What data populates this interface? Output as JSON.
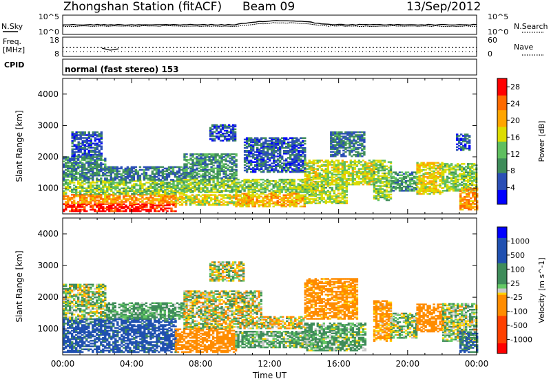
{
  "header": {
    "station": "Zhongshan Station (fitACF)",
    "beam": "Beam 09",
    "date": "13/Sep/2012"
  },
  "top_panels": {
    "nsky_label": "N.Sky",
    "nsearch_label": "N.Search",
    "freq_label_1": "Freq.",
    "freq_label_2": "[MHz]",
    "nave_label": "Nave",
    "cpid_label": "CPID",
    "noise_ticks_left": [
      "10^5",
      "10^0"
    ],
    "noise_ticks_right": [
      "10^5",
      "10^0"
    ],
    "freq_ticks": [
      "18",
      "8"
    ],
    "nave_ticks": [
      "60",
      "0"
    ],
    "cpid_text": "normal (fast stereo) 153"
  },
  "colors": {
    "power_scale": [
      "#0000ff",
      "#2b4fb5",
      "#3f8c5a",
      "#5fbf5f",
      "#dcdc00",
      "#ffa500",
      "#ff6a00",
      "#ff0000"
    ],
    "velocity_scale": [
      "#0000ff",
      "#2050b0",
      "#3f8c5a",
      "#64c864",
      "#c8c8c8",
      "#ffd200",
      "#ff8c00",
      "#ff4000",
      "#ff0000"
    ]
  },
  "chart_data": [
    {
      "type": "heatmap",
      "name": "power",
      "ylabel": "Slant Range [km]",
      "ylim": [
        180,
        4500
      ],
      "yticks": [
        "1000",
        "2000",
        "3000",
        "4000"
      ],
      "xlim": [
        "00:00",
        "24:00"
      ],
      "colorbar_label": "Power [dB]",
      "colorbar_ticks": [
        "4",
        "8",
        "12",
        "16",
        "20",
        "24",
        "28"
      ],
      "colorbar_range": [
        0,
        30
      ],
      "regions": [
        {
          "t": [
            0.0,
            6.5
          ],
          "r": [
            250,
            500
          ],
          "v": 28
        },
        {
          "t": [
            0.0,
            6.5
          ],
          "r": [
            500,
            800
          ],
          "v": 22
        },
        {
          "t": [
            0.0,
            7.0
          ],
          "r": [
            800,
            1250
          ],
          "v": 14
        },
        {
          "t": [
            0.0,
            2.5
          ],
          "r": [
            1250,
            2000
          ],
          "v": 9
        },
        {
          "t": [
            0.5,
            2.2
          ],
          "r": [
            2000,
            2800
          ],
          "v": 6
        },
        {
          "t": [
            2.5,
            7.5
          ],
          "r": [
            1250,
            1700
          ],
          "v": 8
        },
        {
          "t": [
            6.5,
            11.0
          ],
          "r": [
            450,
            800
          ],
          "v": 17
        },
        {
          "t": [
            7.0,
            14.5
          ],
          "r": [
            850,
            1300
          ],
          "v": 14
        },
        {
          "t": [
            7.0,
            10.0
          ],
          "r": [
            1300,
            2100
          ],
          "v": 10
        },
        {
          "t": [
            8.5,
            10.0
          ],
          "r": [
            2500,
            3000
          ],
          "v": 6
        },
        {
          "t": [
            10.5,
            14.0
          ],
          "r": [
            1500,
            2600
          ],
          "v": 6
        },
        {
          "t": [
            10.0,
            14.0
          ],
          "r": [
            400,
            850
          ],
          "v": 20
        },
        {
          "t": [
            14.0,
            16.5
          ],
          "r": [
            500,
            1100
          ],
          "v": 15
        },
        {
          "t": [
            14.0,
            18.0
          ],
          "r": [
            1100,
            1900
          ],
          "v": 16
        },
        {
          "t": [
            15.5,
            17.5
          ],
          "r": [
            2000,
            2800
          ],
          "v": 8
        },
        {
          "t": [
            18.0,
            19.0
          ],
          "r": [
            600,
            1900
          ],
          "v": 14
        },
        {
          "t": [
            19.0,
            20.5
          ],
          "r": [
            900,
            1500
          ],
          "v": 10
        },
        {
          "t": [
            20.5,
            22.0
          ],
          "r": [
            800,
            1800
          ],
          "v": 18
        },
        {
          "t": [
            22.0,
            24.0
          ],
          "r": [
            900,
            1800
          ],
          "v": 14
        },
        {
          "t": [
            23.0,
            24.0
          ],
          "r": [
            300,
            1000
          ],
          "v": 22
        },
        {
          "t": [
            22.8,
            23.6
          ],
          "r": [
            2200,
            2700
          ],
          "v": 6
        }
      ]
    },
    {
      "type": "heatmap",
      "name": "velocity",
      "ylabel": "Slant Range [km]",
      "ylim": [
        180,
        4500
      ],
      "yticks": [
        "1000",
        "2000",
        "3000",
        "4000"
      ],
      "xlabel": "Time UT",
      "xticks": [
        "00:00",
        "04:00",
        "08:00",
        "12:00",
        "16:00",
        "20:00",
        "00:00"
      ],
      "xlim": [
        "00:00",
        "24:00"
      ],
      "colorbar_label": "Velocity [m s^-1]",
      "colorbar_ticks": [
        "1000",
        "500",
        "100",
        "25",
        "-25",
        "-100",
        "-500",
        "-1000"
      ],
      "colorbar_range": [
        -1200,
        1200
      ],
      "regions": [
        {
          "t": [
            0.0,
            6.5
          ],
          "r": [
            250,
            1300
          ],
          "v": 650
        },
        {
          "t": [
            0.0,
            2.5
          ],
          "r": [
            1300,
            2400
          ],
          "v": 60
        },
        {
          "t": [
            2.5,
            7.0
          ],
          "r": [
            1300,
            1800
          ],
          "v": 200
        },
        {
          "t": [
            6.5,
            10.0
          ],
          "r": [
            250,
            1000
          ],
          "v": -300
        },
        {
          "t": [
            7.0,
            11.5
          ],
          "r": [
            1000,
            2200
          ],
          "v": 0
        },
        {
          "t": [
            8.5,
            10.5
          ],
          "r": [
            2500,
            3100
          ],
          "v": 0
        },
        {
          "t": [
            10.0,
            14.5
          ],
          "r": [
            400,
            900
          ],
          "v": 150
        },
        {
          "t": [
            11.5,
            14.0
          ],
          "r": [
            1000,
            1400
          ],
          "v": -40
        },
        {
          "t": [
            14.0,
            17.0
          ],
          "r": [
            1300,
            2600
          ],
          "v": -250
        },
        {
          "t": [
            14.0,
            17.5
          ],
          "r": [
            300,
            1200
          ],
          "v": 150
        },
        {
          "t": [
            18.0,
            19.0
          ],
          "r": [
            600,
            1900
          ],
          "v": -200
        },
        {
          "t": [
            19.0,
            20.5
          ],
          "r": [
            700,
            1500
          ],
          "v": 80
        },
        {
          "t": [
            20.5,
            22.0
          ],
          "r": [
            900,
            1800
          ],
          "v": -300
        },
        {
          "t": [
            22.0,
            24.0
          ],
          "r": [
            600,
            1800
          ],
          "v": 60
        },
        {
          "t": [
            23.0,
            24.0
          ],
          "r": [
            250,
            900
          ],
          "v": 500
        }
      ]
    }
  ]
}
